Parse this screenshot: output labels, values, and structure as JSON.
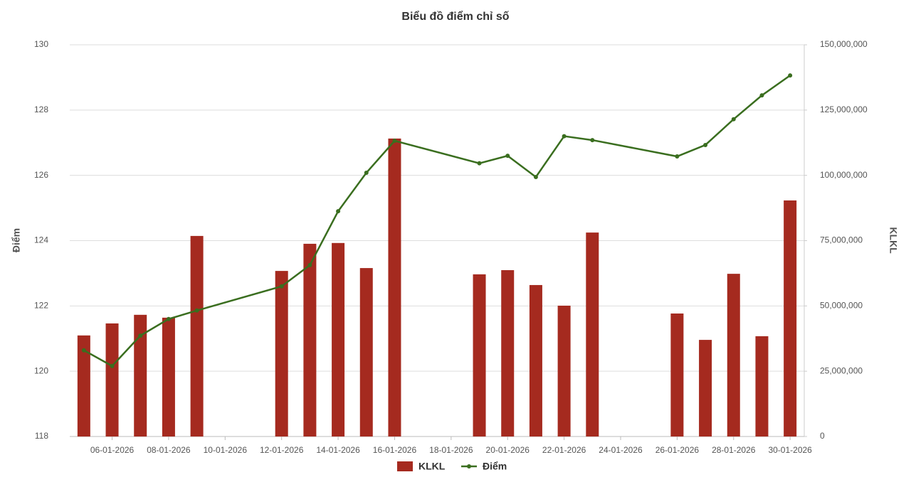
{
  "chart_data": {
    "type": "bar_line",
    "title": "Biểu đồ điểm chỉ số",
    "y_label": "Điểm",
    "y2_label": "KLKL",
    "x": [
      "05-01-2026",
      "06-01-2026",
      "07-01-2026",
      "08-01-2026",
      "09-01-2026",
      "12-01-2026",
      "13-01-2026",
      "14-01-2026",
      "15-01-2026",
      "16-01-2026",
      "19-01-2026",
      "20-01-2026",
      "21-01-2026",
      "22-01-2026",
      "23-01-2026",
      "26-01-2026",
      "27-01-2026",
      "28-01-2026",
      "29-01-2026",
      "30-01-2026"
    ],
    "xlim": [
      "05-01-2026",
      "30-01-2026"
    ],
    "xticks": [
      "06-01-2026",
      "08-01-2026",
      "10-01-2026",
      "12-01-2026",
      "14-01-2026",
      "16-01-2026",
      "18-01-2026",
      "20-01-2026",
      "22-01-2026",
      "24-01-2026",
      "26-01-2026",
      "28-01-2026",
      "30-01-2026"
    ],
    "series": [
      {
        "name": "KLKL",
        "type": "bar",
        "axis": "y2",
        "color": "#a52a1f",
        "values": [
          38700000,
          43300000,
          46600000,
          45500000,
          76800000,
          63400000,
          73800000,
          74100000,
          64500000,
          114100000,
          62100000,
          63700000,
          58000000,
          50100000,
          78100000,
          47100000,
          37000000,
          62300000,
          38400000,
          90400000
        ]
      },
      {
        "name": "Điểm",
        "type": "line",
        "axis": "y",
        "color": "#3a6e1f",
        "values": [
          120.64,
          120.16,
          121.09,
          121.6,
          121.86,
          122.6,
          123.25,
          124.9,
          126.08,
          127.06,
          126.37,
          126.6,
          125.95,
          127.2,
          127.08,
          126.58,
          126.93,
          127.72,
          128.45,
          129.06
        ]
      }
    ],
    "ylim": [
      118,
      130
    ],
    "yticks": [
      118,
      120,
      122,
      124,
      126,
      128,
      130
    ],
    "y2lim": [
      0,
      150000000
    ],
    "y2ticks": [
      0,
      {
        "value": 25000000,
        "label": "25,000,000"
      },
      {
        "value": 50000000,
        "label": "50,000,000"
      },
      {
        "value": 75000000,
        "label": "75,000,000"
      },
      {
        "value": 100000000,
        "label": "100,000,000"
      },
      {
        "value": 125000000,
        "label": "125,000,000"
      },
      {
        "value": 150000000,
        "label": "150,000,000"
      }
    ],
    "grid": true
  }
}
